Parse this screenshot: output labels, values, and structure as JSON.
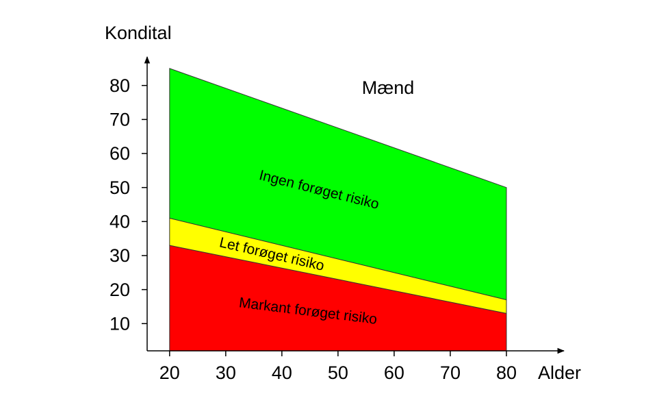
{
  "chart_data": {
    "type": "stacked_area",
    "title": "Mænd",
    "x_label": "Alder",
    "y_label": "Kondital",
    "x": [
      20,
      80
    ],
    "series": [
      {
        "name": "Markant forøget risiko",
        "color": "#ff0000",
        "values": [
          33,
          13
        ]
      },
      {
        "name": "Let forøget risiko",
        "color": "#ffff00",
        "values": [
          8,
          4
        ]
      },
      {
        "name": "Ingen forøget risiko",
        "color": "#00ff00",
        "values": [
          44,
          33
        ]
      }
    ],
    "xlim": [
      16,
      90
    ],
    "xticks": [
      20,
      30,
      40,
      50,
      60,
      70,
      80
    ],
    "ylim": [
      2,
      88
    ],
    "yticks": [
      10,
      20,
      30,
      40,
      50,
      60,
      70,
      80
    ],
    "grid": false
  }
}
